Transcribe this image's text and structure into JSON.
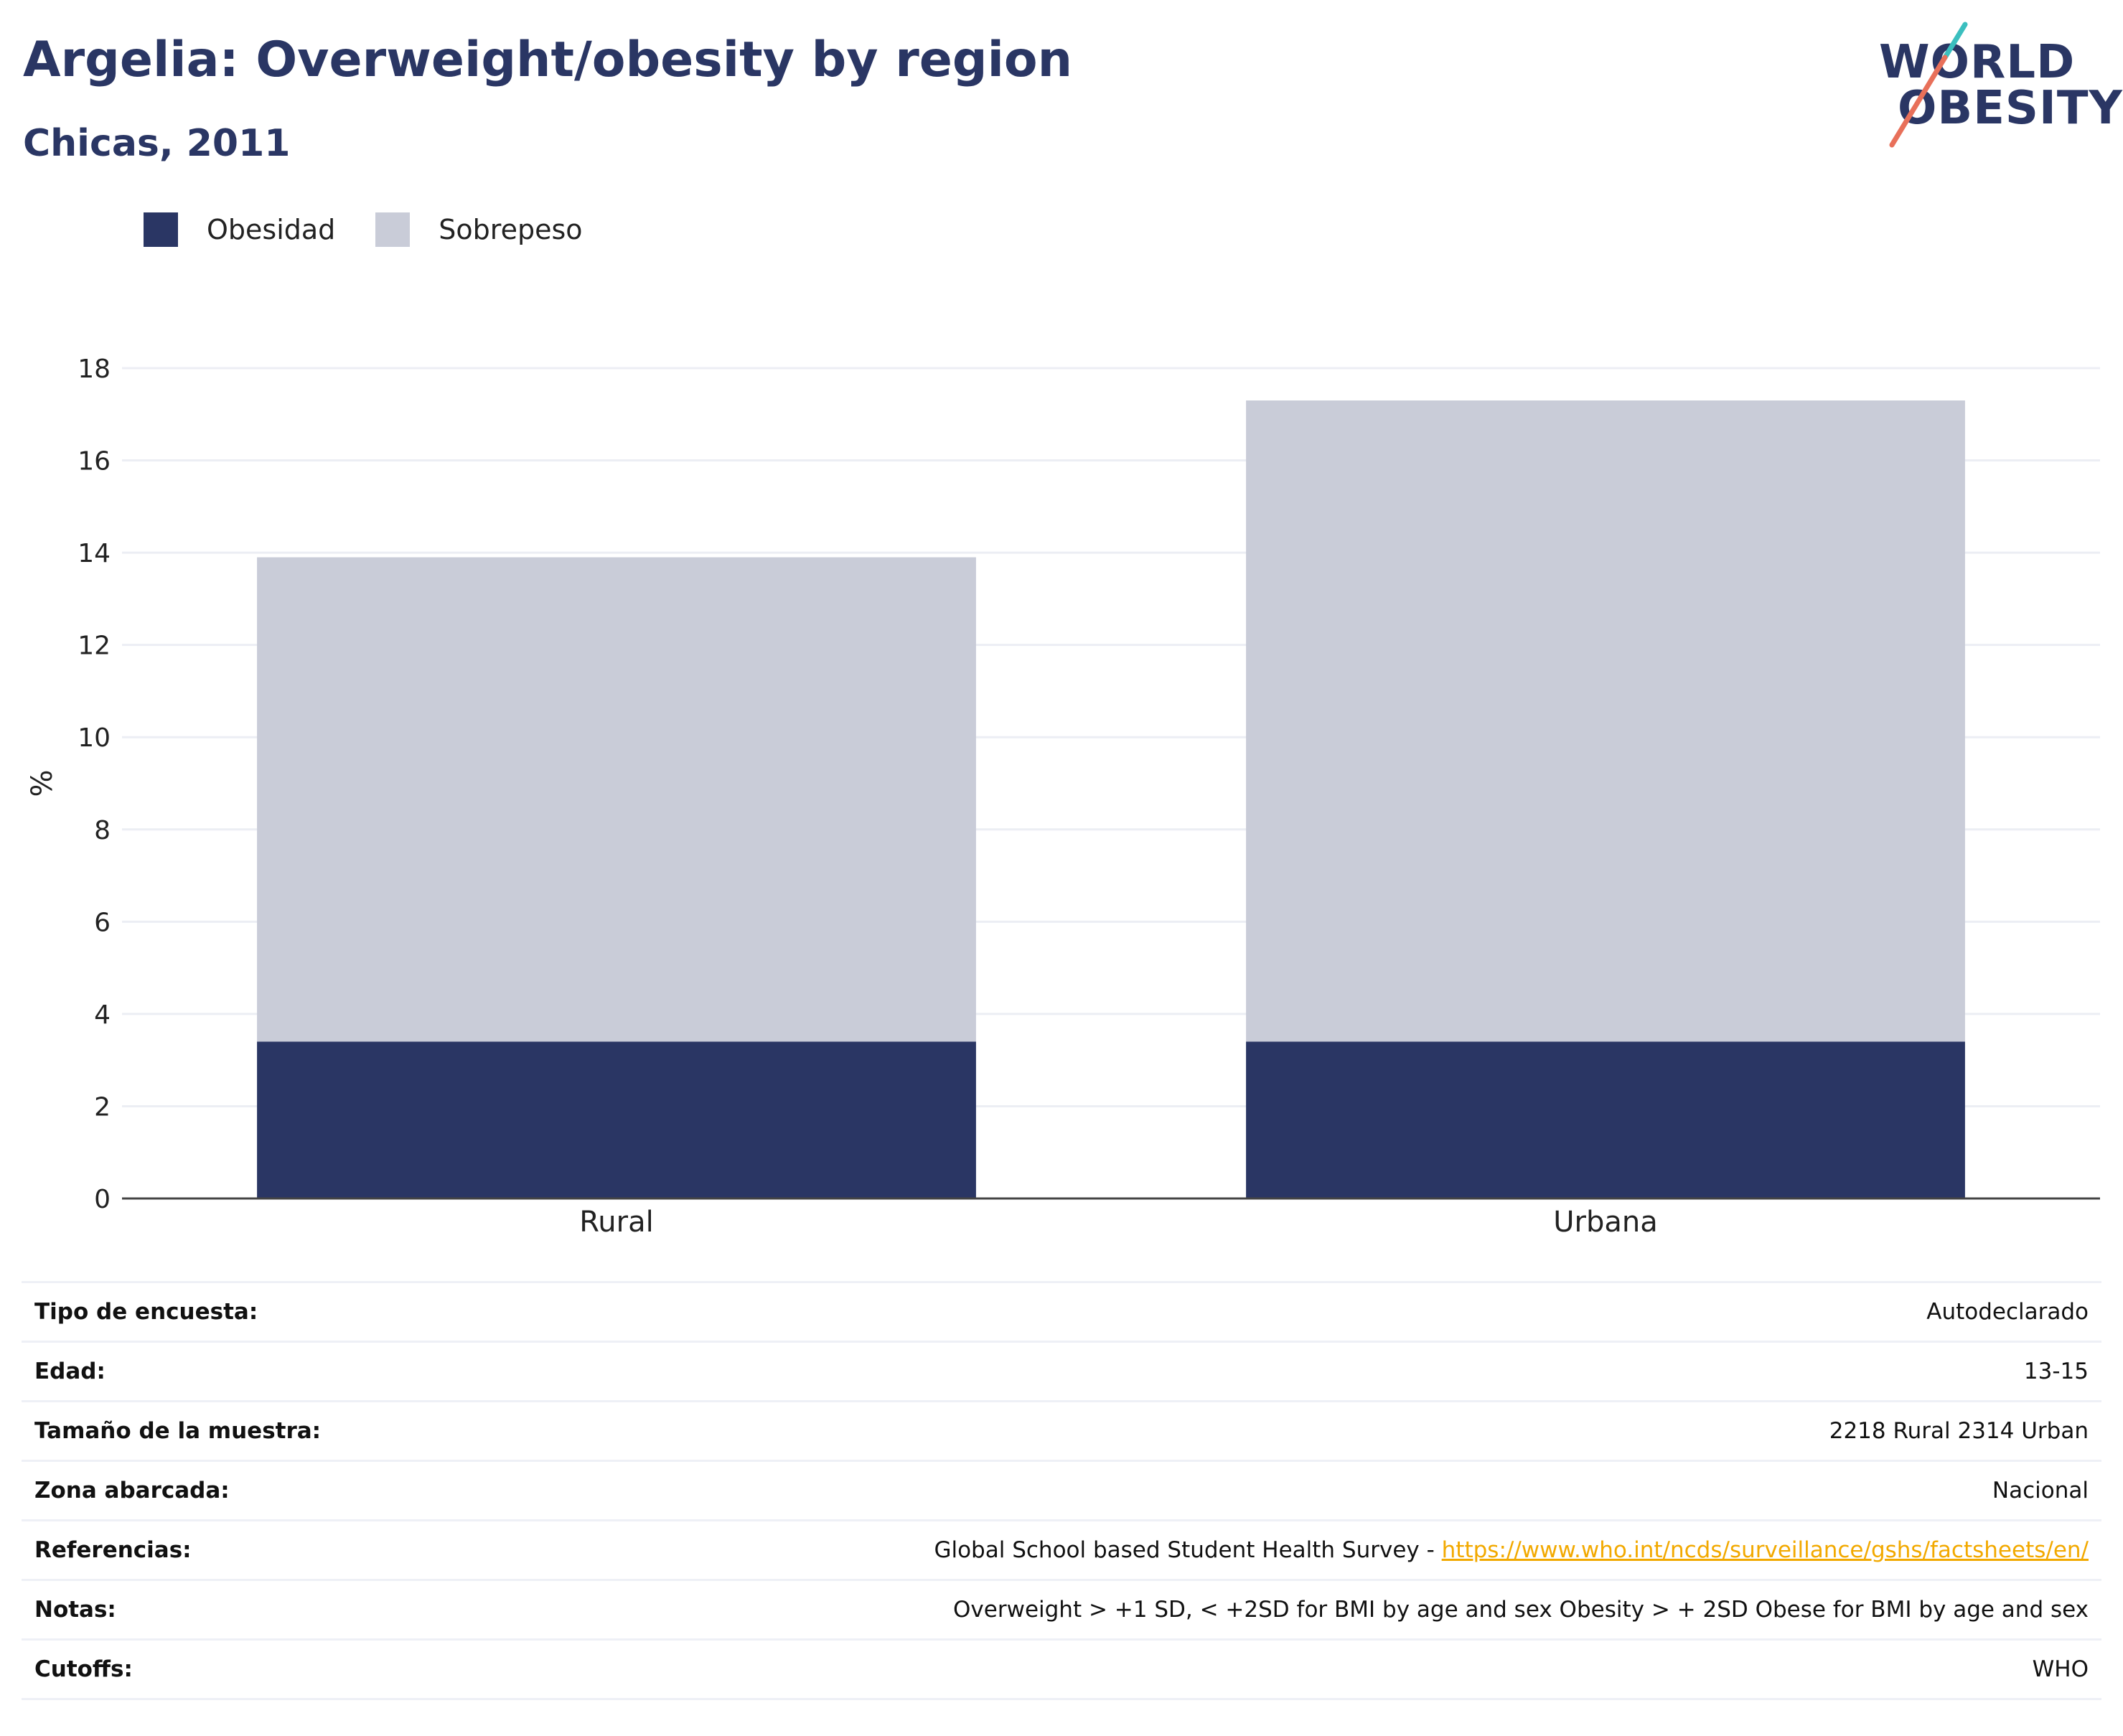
{
  "header": {
    "title": "Argelia: Overweight/obesity by region",
    "subtitle": "Chicas, 2011"
  },
  "logo": {
    "line1": "WORLD",
    "line2": "OBESITY",
    "accent_teal": "#3bbfbf",
    "accent_coral": "#e8705a"
  },
  "colors": {
    "obesity": "#2a3664",
    "overweight": "#c9ccd8",
    "grid": "#eceef4",
    "axis": "#444444"
  },
  "chart_data": {
    "type": "bar",
    "stacked": true,
    "categories": [
      "Rural",
      "Urbana"
    ],
    "series": [
      {
        "name": "Obesidad",
        "values": [
          3.4,
          3.4
        ]
      },
      {
        "name": "Sobrepeso",
        "values": [
          10.5,
          13.9
        ]
      }
    ],
    "ylabel": "%",
    "ylim": [
      0,
      18
    ],
    "yticks": [
      0,
      2,
      4,
      6,
      8,
      10,
      12,
      14,
      16,
      18
    ],
    "grid": true,
    "legend": "top-left"
  },
  "meta": [
    {
      "label": "Tipo de encuesta:",
      "value": "Autodeclarado"
    },
    {
      "label": "Edad:",
      "value": "13-15"
    },
    {
      "label": "Tamaño de la muestra:",
      "value": "2218 Rural 2314 Urban"
    },
    {
      "label": "Zona abarcada:",
      "value": "Nacional"
    },
    {
      "label": "Referencias:",
      "value": "Global School based Student Health Survey - ",
      "link": "https://www.who.int/ncds/surveillance/gshs/factsheets/en/"
    },
    {
      "label": "Notas:",
      "value": "Overweight > +1 SD, < +2SD for BMI by age and sex Obesity > + 2SD Obese for BMI by age and sex"
    },
    {
      "label": "Cutoffs:",
      "value": "WHO"
    }
  ]
}
